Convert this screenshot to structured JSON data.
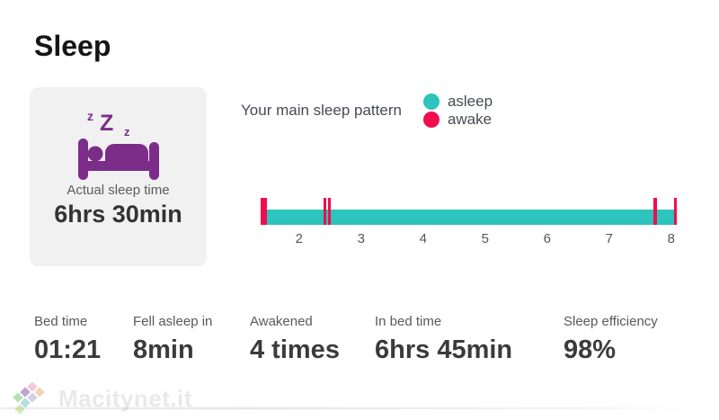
{
  "page": {
    "title": "Sleep"
  },
  "colors": {
    "asleep": "#2cc4bc",
    "awake": "#f10d4c",
    "icon_purple": "#7b2d89",
    "card_bg": "#f1f1f1"
  },
  "summary_card": {
    "icon": "sleeping-bed-icon",
    "label": "Actual sleep time",
    "value": "6hrs 30min"
  },
  "legend": {
    "title": "Your main sleep pattern",
    "items": [
      {
        "label": "asleep",
        "color": "#2cc4bc"
      },
      {
        "label": "awake",
        "color": "#f10d4c"
      }
    ]
  },
  "chart_data": {
    "type": "timeline",
    "title": "Your main sleep pattern",
    "x_unit": "hour-of-day",
    "x_range": [
      1.38,
      8.09
    ],
    "x_ticks": [
      2,
      3,
      4,
      5,
      6,
      7,
      8
    ],
    "grid": false,
    "asleep_span": {
      "start": 1.48,
      "end": 8.09,
      "state": "asleep"
    },
    "awake_marks": [
      {
        "x": 1.38,
        "w": 0.1
      },
      {
        "x": 2.39,
        "w": 0.045
      },
      {
        "x": 2.46,
        "w": 0.045
      },
      {
        "x": 7.72,
        "w": 0.045
      },
      {
        "x": 8.04,
        "w": 0.045
      }
    ]
  },
  "stats": [
    {
      "label": "Bed time",
      "value": "01:21"
    },
    {
      "label": "Fell asleep in",
      "value": "8min"
    },
    {
      "label": "Awakened",
      "value": "4 times"
    },
    {
      "label": "In bed time",
      "value": "6hrs 45min"
    },
    {
      "label": "Sleep efficiency",
      "value": "98%"
    }
  ],
  "watermark": {
    "text": "Macitynet.it"
  }
}
